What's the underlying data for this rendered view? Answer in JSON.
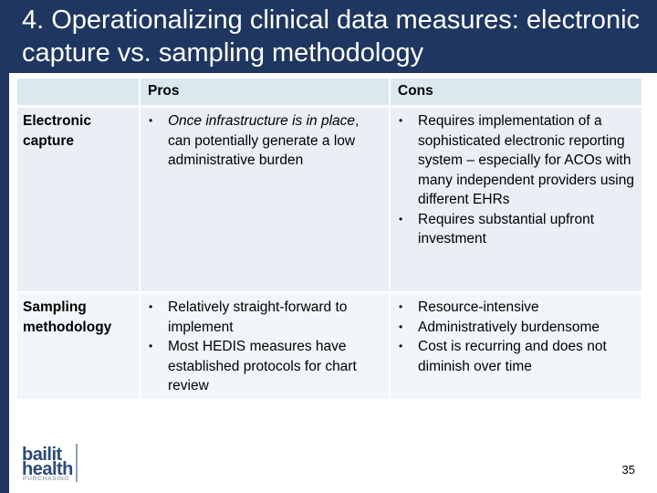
{
  "title": "4. Operationalizing clinical data measures: electronic capture vs. sampling methodology",
  "table": {
    "headers": [
      "",
      "Pros",
      "Cons"
    ],
    "rows": [
      {
        "label": "Electronic capture",
        "pros": [
          {
            "italic": "Once infrastructure is in place",
            "rest": ", can potentially generate a low administrative burden"
          }
        ],
        "cons": [
          "Requires implementation of a sophisticated electronic reporting system – especially for ACOs with many independent providers using different EHRs",
          "Requires substantial upfront investment"
        ]
      },
      {
        "label": "Sampling methodology",
        "pros": [
          "Relatively straight-forward to implement",
          "Most HEDIS measures have established protocols for chart review"
        ],
        "cons": [
          "Resource-intensive",
          "Administratively burdensome",
          "Cost is recurring and does not diminish over time"
        ]
      }
    ]
  },
  "logo": {
    "line1": "bailit",
    "line2": "health",
    "line3": "PURCHASING"
  },
  "page_number": "35",
  "colors": {
    "title_bg": "#1f3760",
    "header_bg": "#dbe8f0",
    "row_bg": "#e9eff4"
  }
}
